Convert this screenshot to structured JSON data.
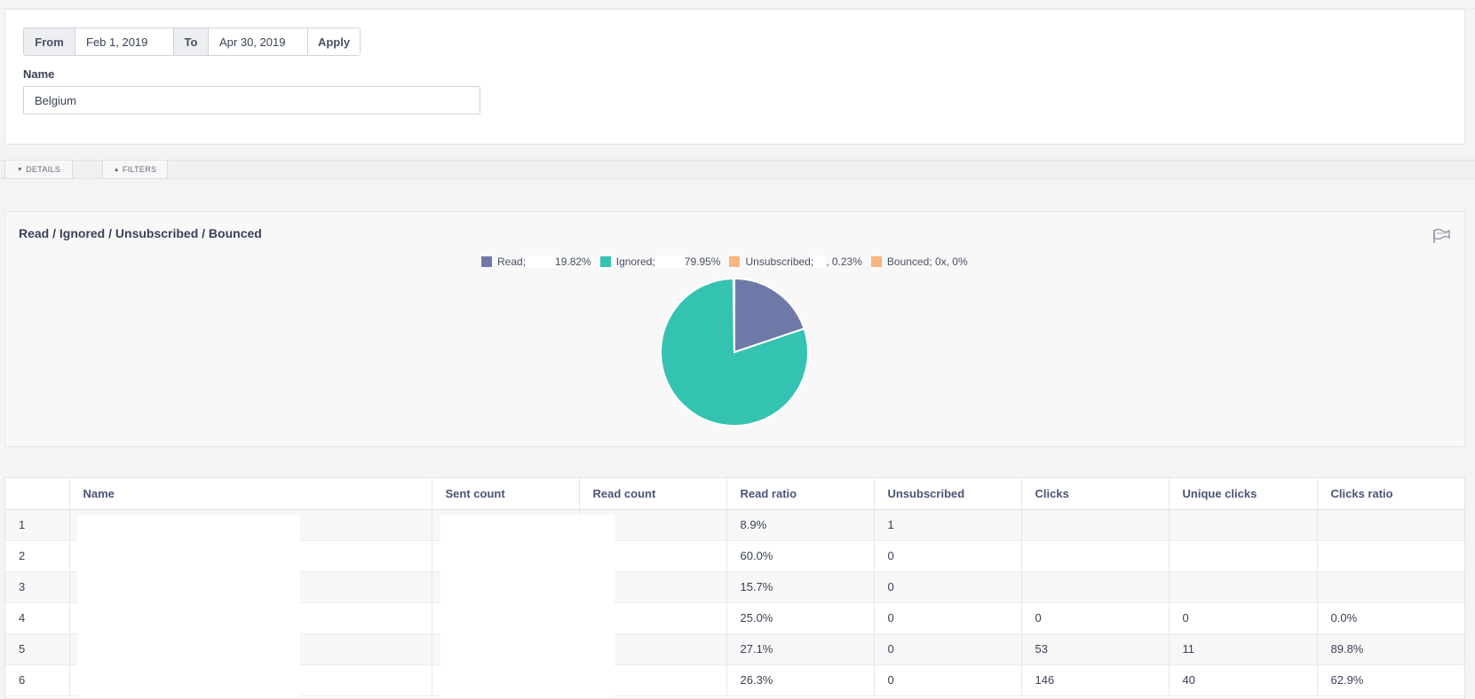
{
  "filters": {
    "from_label": "From",
    "from_value": "Feb 1, 2019",
    "to_label": "To",
    "to_value": "Apr 30, 2019",
    "apply_label": "Apply",
    "name_label": "Name",
    "name_value": "Belgium"
  },
  "tabs": {
    "details": "DETAILS",
    "filters": "FILTERS"
  },
  "chart": {
    "title": "Read / Ignored / Unsubscribed / Bounced",
    "flag_icon": "flag-icon",
    "legend": [
      {
        "prefix": "Read;",
        "suffix": "19.82%",
        "color": "#6f79a8"
      },
      {
        "prefix": "Ignored;",
        "suffix": "79.95%",
        "color": "#35c3b1"
      },
      {
        "prefix": "Unsubscribed;",
        "suffix": ", 0.23%",
        "color": "#f8b57e"
      },
      {
        "prefix": "Bounced; 0x, 0%",
        "suffix": "",
        "color": "#f8b57e"
      }
    ]
  },
  "chart_data": {
    "type": "pie",
    "title": "Read / Ignored / Unsubscribed / Bounced",
    "labels": [
      "Read",
      "Ignored",
      "Unsubscribed",
      "Bounced"
    ],
    "values": [
      19.82,
      79.95,
      0.23,
      0
    ],
    "colors": [
      "#6f79a8",
      "#35c3b1",
      "#f8b57e",
      "#f8b57e"
    ],
    "legend_position": "top"
  },
  "table": {
    "columns": [
      "",
      "Name",
      "Sent count",
      "Read count",
      "Read ratio",
      "Unsubscribed",
      "Clicks",
      "Unique clicks",
      "Clicks ratio"
    ],
    "rows": [
      [
        "1",
        "",
        "",
        "",
        "8.9%",
        "1",
        "",
        "",
        ""
      ],
      [
        "2",
        "",
        "",
        "",
        "60.0%",
        "0",
        "",
        "",
        ""
      ],
      [
        "3",
        "",
        "",
        "",
        "15.7%",
        "0",
        "",
        "",
        ""
      ],
      [
        "4",
        "",
        "",
        "",
        "25.0%",
        "0",
        "0",
        "0",
        "0.0%"
      ],
      [
        "5",
        "",
        "",
        "",
        "27.1%",
        "0",
        "53",
        "11",
        "89.8%"
      ],
      [
        "6",
        "",
        "",
        "",
        "26.3%",
        "0",
        "146",
        "40",
        "62.9%"
      ]
    ]
  }
}
